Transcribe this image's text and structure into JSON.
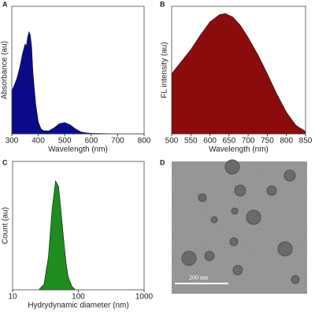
{
  "panel_labels": [
    "A",
    "B",
    "C",
    "D"
  ],
  "chart_data": [
    {
      "type": "area",
      "x_label": "Wavelength (nm)",
      "y_label": "Absorbance (au)",
      "color": "#0b0b8a",
      "x": [
        300,
        310,
        320,
        330,
        340,
        350,
        355,
        360,
        365,
        370,
        375,
        380,
        390,
        400,
        410,
        420,
        440,
        460,
        480,
        500,
        520,
        540,
        560,
        580,
        600,
        700,
        800
      ],
      "values": [
        0.42,
        0.48,
        0.55,
        0.65,
        0.78,
        0.88,
        0.86,
        0.95,
        1.0,
        0.97,
        0.85,
        0.6,
        0.3,
        0.12,
        0.05,
        0.03,
        0.03,
        0.06,
        0.1,
        0.11,
        0.09,
        0.05,
        0.02,
        0.01,
        0.005,
        0,
        0
      ],
      "xlim": [
        300,
        800
      ],
      "xticks": [
        300,
        400,
        500,
        600,
        700,
        800
      ],
      "ylim": [
        0,
        1.25
      ]
    },
    {
      "type": "area",
      "x_label": "Wavelength (nm)",
      "y_label": "FL intensity (au)",
      "color": "#8b0c0c",
      "x": [
        500,
        525,
        550,
        575,
        600,
        625,
        640,
        660,
        680,
        700,
        725,
        750,
        775,
        800,
        825,
        850
      ],
      "values": [
        0.5,
        0.6,
        0.7,
        0.82,
        0.93,
        0.99,
        1.0,
        0.97,
        0.9,
        0.8,
        0.66,
        0.5,
        0.33,
        0.18,
        0.07,
        0.02
      ],
      "xlim": [
        500,
        850
      ],
      "xticks": [
        500,
        550,
        600,
        650,
        700,
        750,
        800,
        850
      ],
      "ylim": [
        0,
        1.06
      ]
    },
    {
      "type": "area",
      "x_label": "Hydrydynamic diameter (nm)",
      "y_label": "Count (au)",
      "color": "#1e8c1e",
      "log_x": true,
      "x": [
        25,
        30,
        35,
        40,
        45,
        50,
        55,
        60,
        65,
        70,
        80,
        90
      ],
      "values": [
        0,
        0.05,
        0.3,
        0.75,
        1.0,
        0.95,
        0.7,
        0.45,
        0.25,
        0.12,
        0.03,
        0
      ],
      "xlim": [
        10,
        1000
      ],
      "xticks": [
        10,
        100,
        1000
      ],
      "ylim": [
        0,
        1.18
      ]
    }
  ],
  "image": {
    "scale_bar": "200 nm"
  }
}
